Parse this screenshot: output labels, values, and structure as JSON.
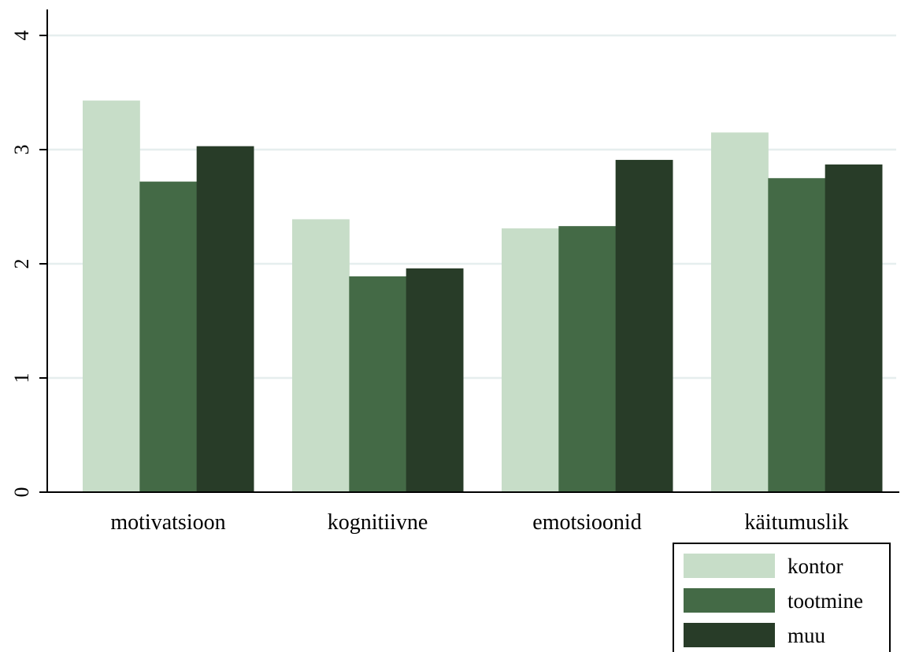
{
  "chart_data": {
    "type": "bar",
    "title": "",
    "xlabel": "",
    "ylabel": "",
    "categories": [
      "motivatsioon",
      "kognitiivne",
      "emotsioonid",
      "käitumuslik"
    ],
    "series": [
      {
        "name": "kontor",
        "color": "#c7ddc8",
        "values": [
          3.43,
          2.39,
          2.31,
          3.15
        ]
      },
      {
        "name": "tootmine",
        "color": "#446a46",
        "values": [
          2.72,
          1.89,
          2.33,
          2.75
        ]
      },
      {
        "name": "muu",
        "color": "#283c28",
        "values": [
          3.03,
          1.96,
          2.91,
          2.87
        ]
      }
    ],
    "ylim": [
      0,
      4
    ],
    "yticks": [
      "0",
      "1",
      "2",
      "3",
      "4"
    ],
    "grid": true,
    "grid_color": "#e6eeee",
    "legend_position": "bottom-right"
  }
}
